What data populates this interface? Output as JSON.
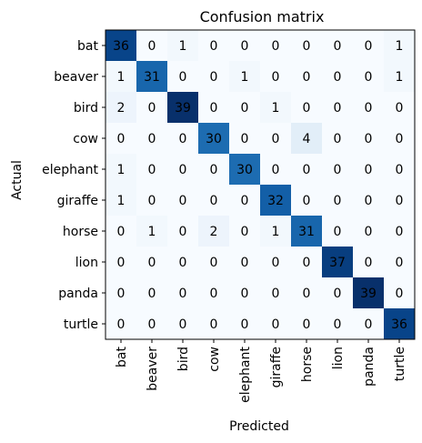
{
  "chart_data": {
    "type": "heatmap",
    "title": "Confusion matrix",
    "xlabel": "Predicted",
    "ylabel": "Actual",
    "x_categories": [
      "bat",
      "beaver",
      "bird",
      "cow",
      "elephant",
      "giraffe",
      "horse",
      "lion",
      "panda",
      "turtle"
    ],
    "y_categories": [
      "bat",
      "beaver",
      "bird",
      "cow",
      "elephant",
      "giraffe",
      "horse",
      "lion",
      "panda",
      "turtle"
    ],
    "values": [
      [
        36,
        0,
        1,
        0,
        0,
        0,
        0,
        0,
        0,
        1
      ],
      [
        1,
        31,
        0,
        0,
        1,
        0,
        0,
        0,
        0,
        1
      ],
      [
        2,
        0,
        39,
        0,
        0,
        1,
        0,
        0,
        0,
        0
      ],
      [
        0,
        0,
        0,
        30,
        0,
        0,
        4,
        0,
        0,
        0
      ],
      [
        1,
        0,
        0,
        0,
        30,
        0,
        0,
        0,
        0,
        0
      ],
      [
        1,
        0,
        0,
        0,
        0,
        32,
        0,
        0,
        0,
        0
      ],
      [
        0,
        1,
        0,
        2,
        0,
        1,
        31,
        0,
        0,
        0
      ],
      [
        0,
        0,
        0,
        0,
        0,
        0,
        0,
        37,
        0,
        0
      ],
      [
        0,
        0,
        0,
        0,
        0,
        0,
        0,
        0,
        39,
        0
      ],
      [
        0,
        0,
        0,
        0,
        0,
        0,
        0,
        0,
        0,
        36
      ]
    ],
    "colormap": "Blues",
    "colormap_low": "#f7fbff",
    "colormap_high": "#08306b",
    "value_range": [
      0,
      39
    ],
    "text_color_dark": "#000000",
    "text_color_light": "#ffffff",
    "grid": false
  }
}
